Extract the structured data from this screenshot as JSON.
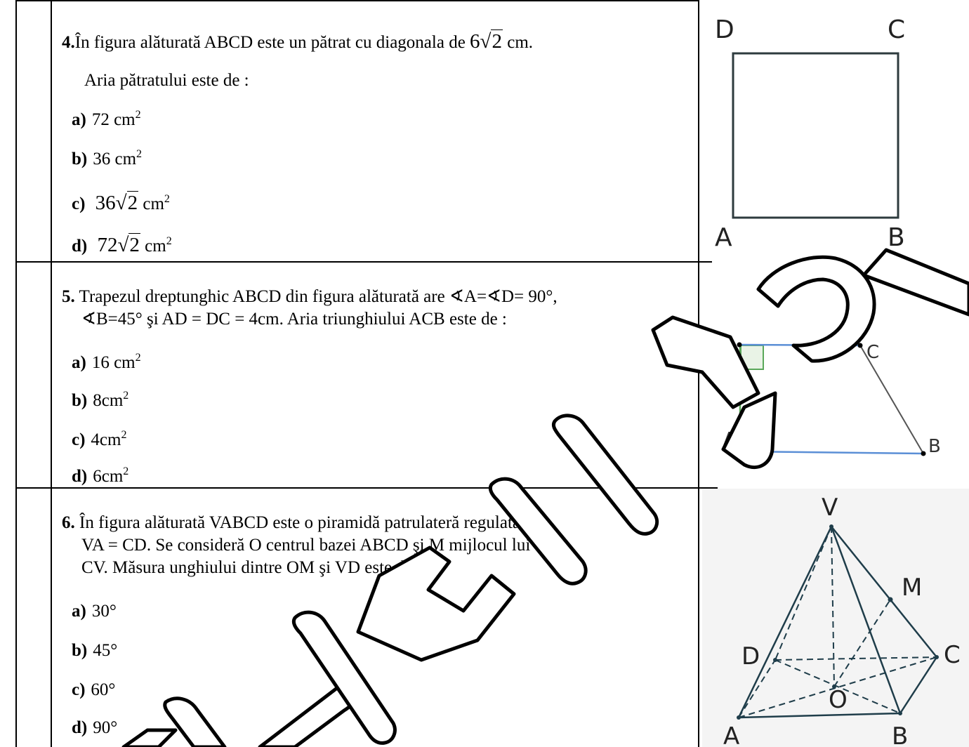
{
  "questions": [
    {
      "number": "4.",
      "text_pre": "În figura alăturată ABCD este un pătrat cu diagonala de ",
      "coef": "6",
      "radicand": "2",
      "text_post": " cm.",
      "text_line2": "Aria pătratului este de :",
      "options": [
        {
          "label": "a)",
          "value": "72 cm",
          "sup": "2"
        },
        {
          "label": "b)",
          "value": "36 cm",
          "sup": "2"
        },
        {
          "label": "c)",
          "coef": "36",
          "radicand": "2",
          "unit": " cm",
          "sup": "2"
        },
        {
          "label": "d)",
          "coef": "72",
          "radicand": "2",
          "unit": " cm",
          "sup": "2"
        }
      ],
      "figure": {
        "labels": {
          "D": "D",
          "C": "C",
          "A": "A",
          "B": "B"
        }
      }
    },
    {
      "number": "5.",
      "line1": " Trapezul dreptunghic ABCD din figura alăturată are ∢A=∢D= 90°,",
      "line2": "∢B=45° şi AD = DC = 4cm. Aria triunghiului ACB este de :",
      "options": [
        {
          "label": "a)",
          "value": "16 cm",
          "sup": "2"
        },
        {
          "label": "b)",
          "value": "8cm",
          "sup": "2"
        },
        {
          "label": "c)",
          "value": "4cm",
          "sup": "2"
        },
        {
          "label": "d)",
          "value": "6cm",
          "sup": "2"
        }
      ],
      "figure": {
        "labels": {
          "D": "D",
          "C": "C",
          "A": "A",
          "B": "B"
        }
      }
    },
    {
      "number": "6.",
      "line1": " În figura alăturată VABCD este o piramidă patrulateră regulată , cu",
      "line2": "VA = CD. Se consideră O centrul bazei ABCD şi M mijlocul lui",
      "line3": "CV. Măsura unghiului dintre OM şi VD este de :",
      "options": [
        {
          "label": "a)",
          "value": "30°"
        },
        {
          "label": "b)",
          "value": "45°"
        },
        {
          "label": "c)",
          "value": "60°"
        },
        {
          "label": "d)",
          "value": "90°"
        }
      ],
      "figure": {
        "labels": {
          "V": "V",
          "M": "M",
          "D": "D",
          "C": "C",
          "O": "O",
          "A": "A",
          "B": "B"
        }
      }
    }
  ],
  "colors": {
    "watermark": "#000000",
    "trapezoid_blue": "#5b8fd6",
    "trapezoid_green": "#5aa85a",
    "right_angle_fill": "#e9f3e6"
  }
}
